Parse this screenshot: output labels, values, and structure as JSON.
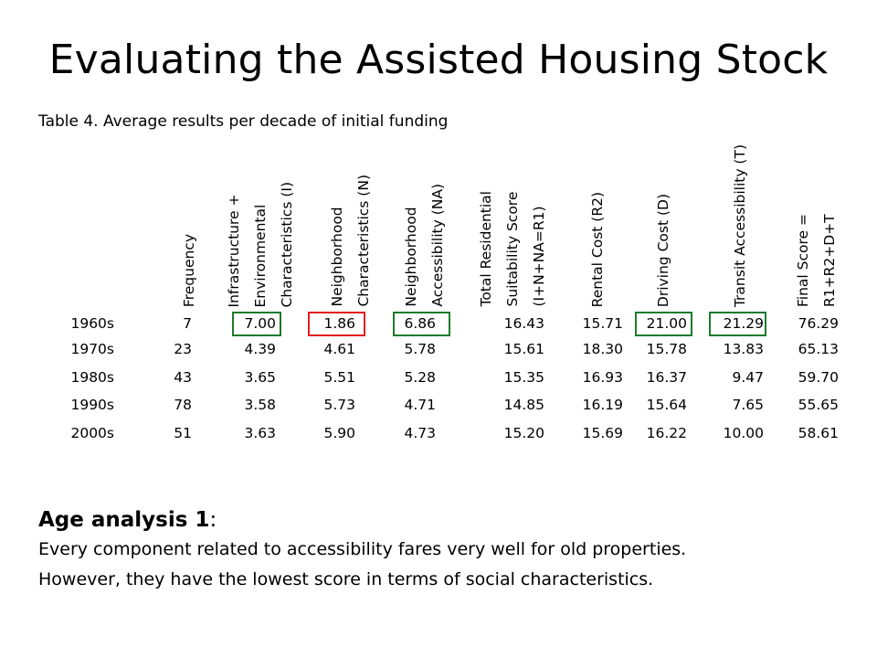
{
  "title": "Evaluating the Assisted Housing Stock",
  "table_caption": "Table 4. Average results per decade of initial funding",
  "columns": [
    "Frequency",
    "Infrastructure +\nEnvironmental\nCharacteristics (I)",
    "Neighborhood\nCharacteristics (N)",
    "Neighborhood\nAccessibility (NA)",
    "Total Residential\nSuitability Score\n(I+N+NA=R1)",
    "Rental Cost (R2)",
    "Driving Cost (D)",
    "Transit Accessibility (T)",
    "Final Score =\nR1+R2+D+T"
  ],
  "rows": [
    {
      "label": "1960s",
      "values": [
        "7",
        "7.00",
        "1.86",
        "6.86",
        "16.43",
        "15.71",
        "21.00",
        "21.29",
        "76.29"
      ]
    },
    {
      "label": "1970s",
      "values": [
        "23",
        "4.39",
        "4.61",
        "5.78",
        "15.61",
        "18.30",
        "15.78",
        "13.83",
        "65.13"
      ]
    },
    {
      "label": "1980s",
      "values": [
        "43",
        "3.65",
        "5.51",
        "5.28",
        "15.35",
        "16.93",
        "16.37",
        "9.47",
        "59.70"
      ]
    },
    {
      "label": "1990s",
      "values": [
        "78",
        "3.58",
        "5.73",
        "4.71",
        "14.85",
        "16.19",
        "15.64",
        "7.65",
        "55.65"
      ]
    },
    {
      "label": "2000s",
      "values": [
        "51",
        "3.63",
        "5.90",
        "4.73",
        "15.20",
        "15.69",
        "16.22",
        "10.00",
        "58.61"
      ]
    }
  ],
  "highlight_colors": {
    "good": "#1f7a2e",
    "bad": "#e11e1e"
  },
  "analysis": {
    "heading_bold": "Age analysis 1",
    "heading_suffix": ":",
    "line1": "Every component related to accessibility fares very well for old properties.",
    "line2": "However, they have the lowest score in terms of social characteristics."
  }
}
